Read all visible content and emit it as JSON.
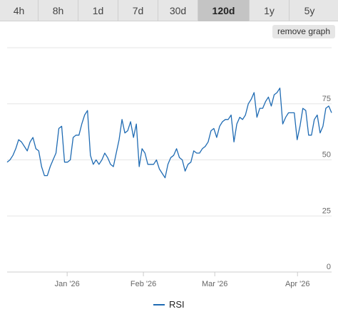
{
  "tabs": [
    {
      "label": "4h",
      "active": false
    },
    {
      "label": "8h",
      "active": false
    },
    {
      "label": "1d",
      "active": false
    },
    {
      "label": "7d",
      "active": false
    },
    {
      "label": "30d",
      "active": false
    },
    {
      "label": "120d",
      "active": true
    },
    {
      "label": "1y",
      "active": false
    },
    {
      "label": "5y",
      "active": false
    }
  ],
  "remove_button": "remove graph",
  "colors": {
    "series": "#1f6bb3",
    "grid": "#e6e6e6"
  },
  "chart_data": {
    "type": "line",
    "ylim": [
      0,
      100
    ],
    "y_ticks": [
      {
        "value": 0,
        "label": "0"
      },
      {
        "value": 25,
        "label": "25"
      },
      {
        "value": 50,
        "label": "50"
      },
      {
        "value": 75,
        "label": "75"
      }
    ],
    "x_ticks": [
      {
        "x": 0.185,
        "label": "Jan '26"
      },
      {
        "x": 0.42,
        "label": "Feb '26"
      },
      {
        "x": 0.64,
        "label": "Mar '26"
      },
      {
        "x": 0.895,
        "label": "Apr '26"
      }
    ],
    "series": [
      {
        "name": "RSI",
        "values": [
          49,
          50,
          52,
          55,
          59,
          58,
          56,
          54,
          58,
          60,
          55,
          54,
          47,
          43,
          43,
          47,
          50,
          53,
          64,
          65,
          49,
          49,
          50,
          60,
          61,
          61,
          66,
          70,
          72,
          52,
          48,
          50,
          48,
          50,
          53,
          51,
          48,
          47,
          53,
          59,
          68,
          62,
          63,
          67,
          60,
          66,
          47,
          55,
          53,
          48,
          48,
          48,
          50,
          46,
          44,
          42,
          48,
          51,
          52,
          55,
          51,
          50,
          45,
          48,
          49,
          54,
          53,
          53,
          55,
          56,
          58,
          63,
          64,
          60,
          65,
          67,
          68,
          68,
          70,
          58,
          66,
          69,
          68,
          70,
          75,
          77,
          80,
          69,
          73,
          73,
          76,
          78,
          74,
          79,
          80,
          82,
          66,
          69,
          71,
          71,
          71,
          59,
          65,
          73,
          72,
          61,
          61,
          68,
          70,
          62,
          65,
          73,
          74,
          71
        ]
      }
    ]
  }
}
